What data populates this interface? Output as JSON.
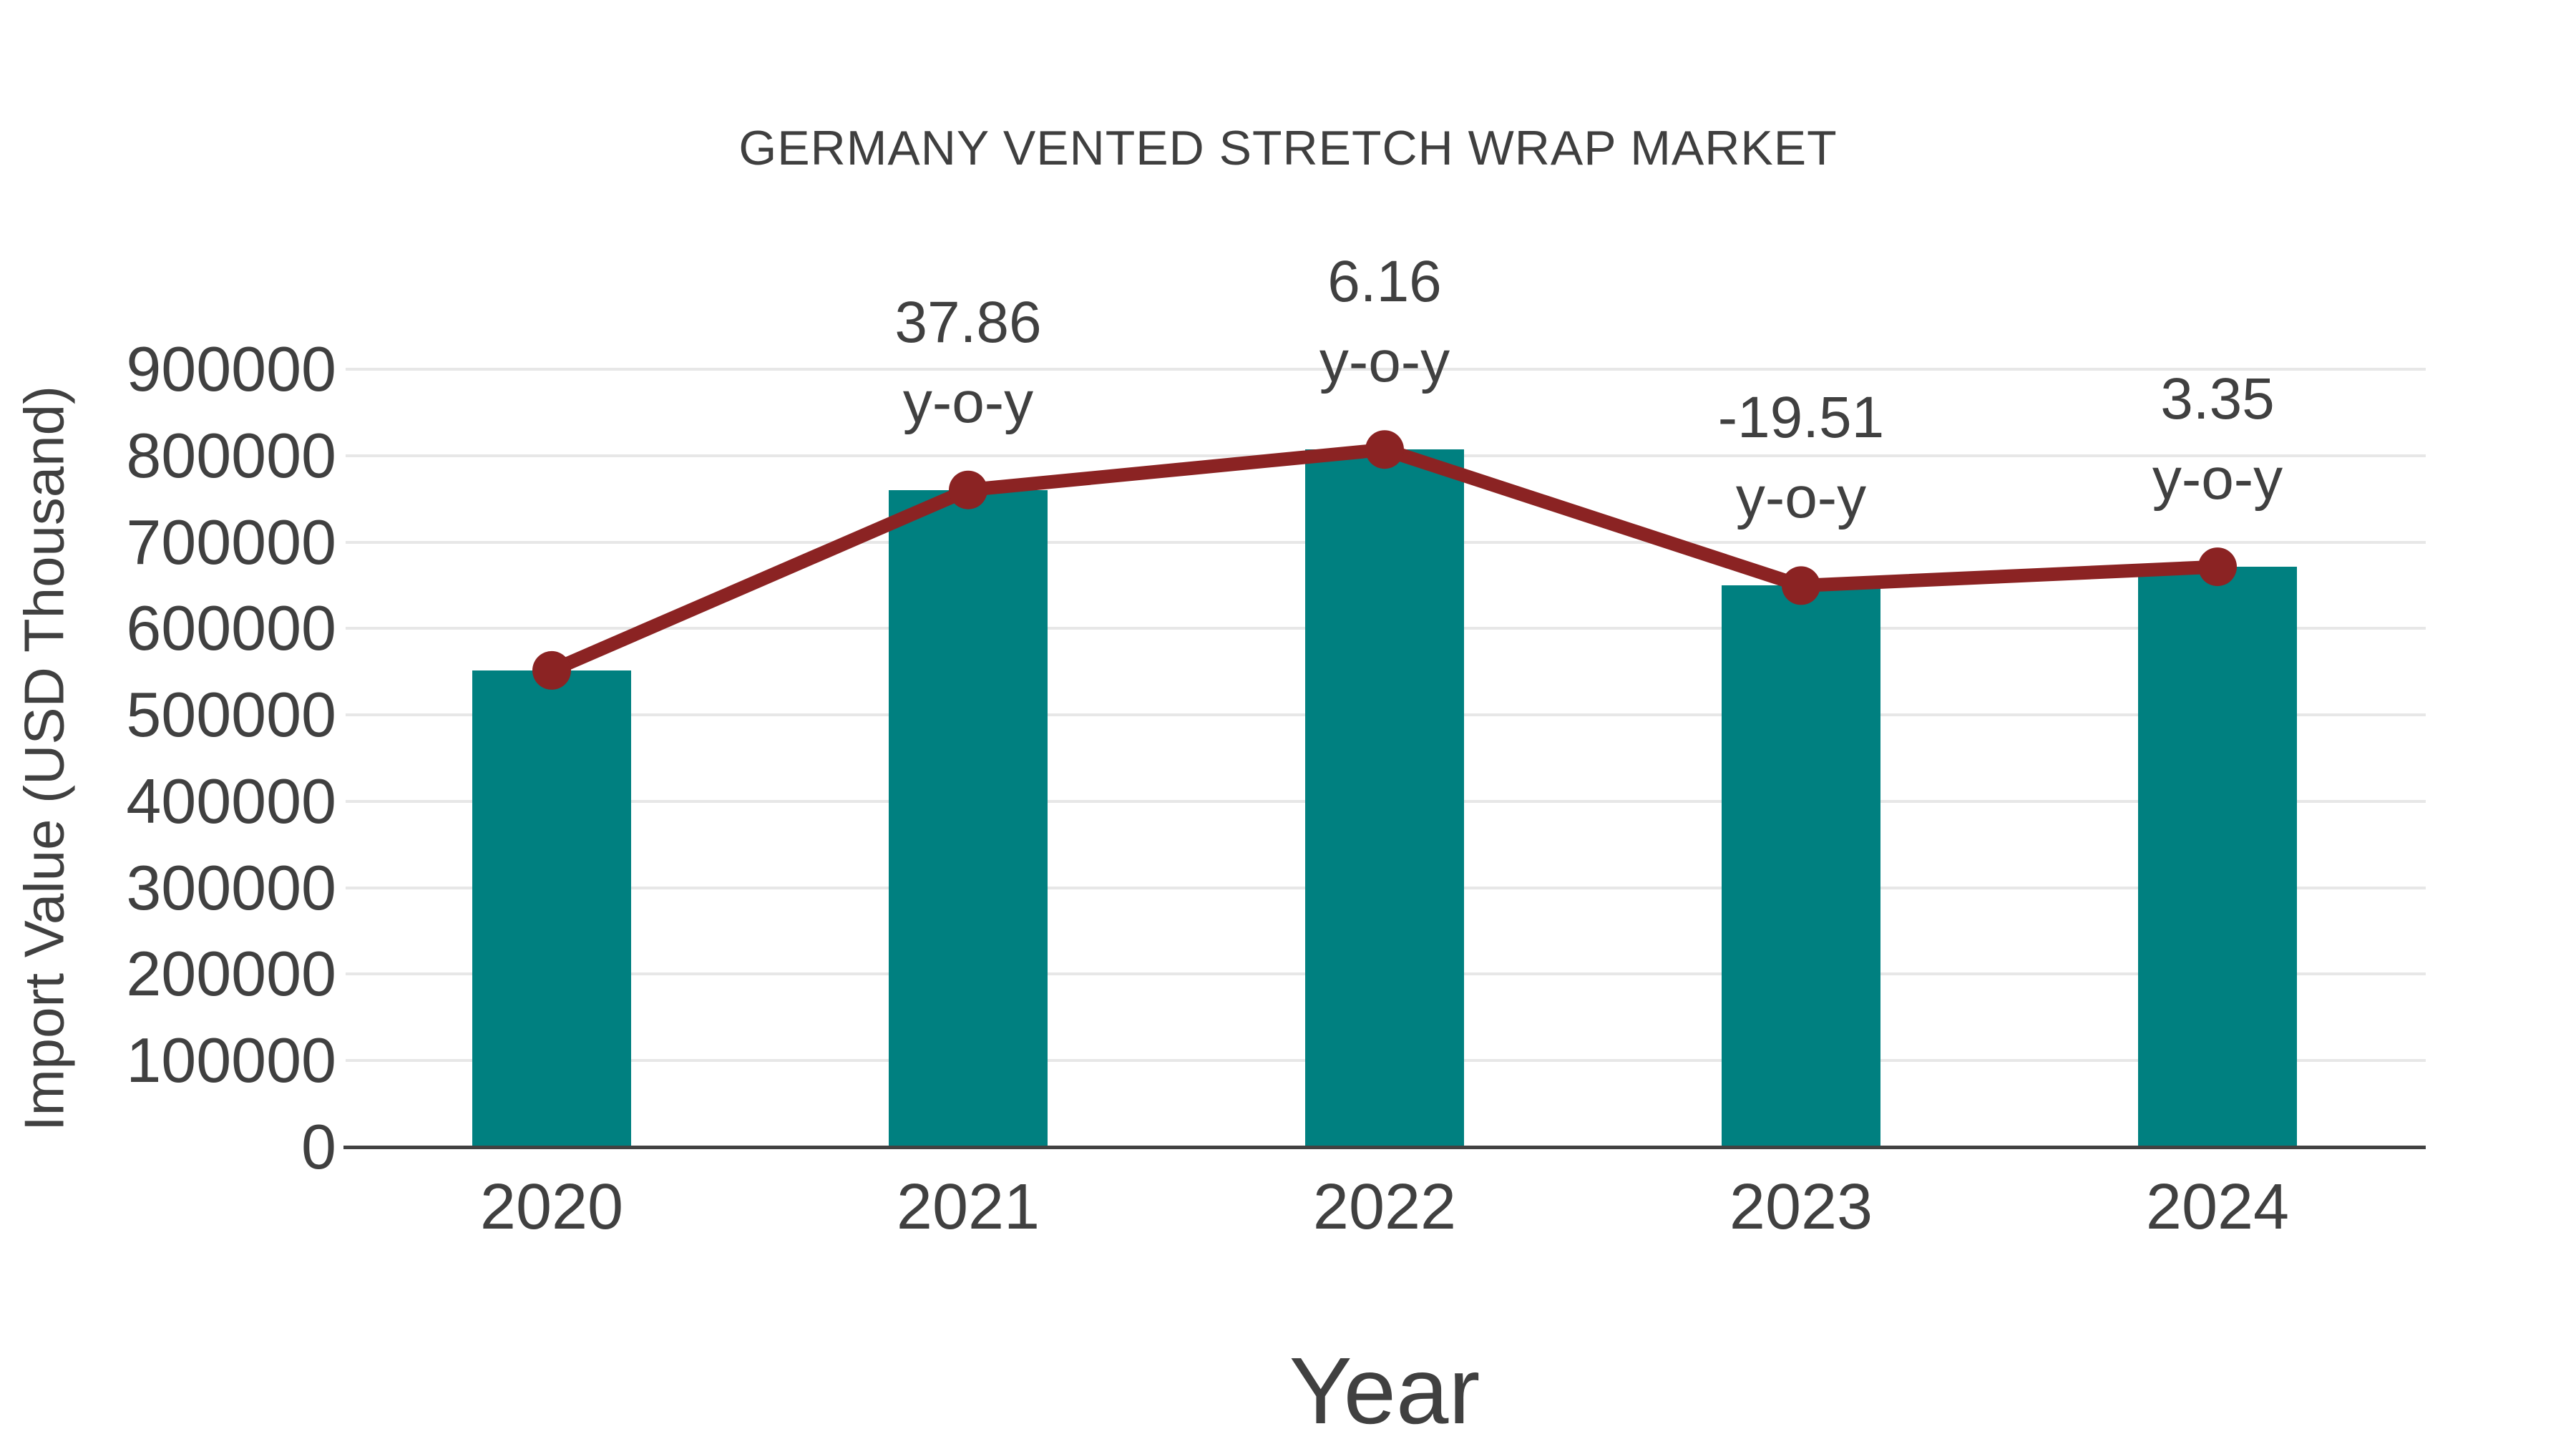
{
  "chart_data": {
    "type": "bar+line",
    "title": "GERMANY VENTED STRETCH WRAP MARKET",
    "xlabel": "Year",
    "ylabel": "Import Value (USD Thousand)",
    "categories": [
      "2020",
      "2021",
      "2022",
      "2023",
      "2024"
    ],
    "series": [
      {
        "name": "import-value-bars",
        "type": "bar",
        "color": "#008080",
        "values": [
          551500,
          760300,
          807100,
          649600,
          671400
        ]
      },
      {
        "name": "import-value-trend",
        "type": "line",
        "color": "#8B2323",
        "values": [
          551500,
          760300,
          807100,
          649600,
          671400
        ]
      }
    ],
    "annotations": [
      {
        "category": "2021",
        "value_label": "37.86",
        "suffix_label": "y-o-y"
      },
      {
        "category": "2022",
        "value_label": "6.16",
        "suffix_label": "y-o-y"
      },
      {
        "category": "2023",
        "value_label": "-19.51",
        "suffix_label": "y-o-y"
      },
      {
        "category": "2024",
        "value_label": "3.35",
        "suffix_label": "y-o-y"
      }
    ],
    "ylim": [
      0,
      900000
    ],
    "ytick_step": 100000,
    "ytick_labels": [
      "0",
      "100000",
      "200000",
      "300000",
      "400000",
      "500000",
      "600000",
      "700000",
      "800000",
      "900000"
    ],
    "grid": true,
    "legend_position": "none",
    "styles": {
      "bar_color": "#008080",
      "line_color": "#8B2323",
      "text_color": "#404040",
      "grid_color": "#e7e7e7",
      "axis_color": "#424242",
      "background": "#ffffff"
    }
  }
}
